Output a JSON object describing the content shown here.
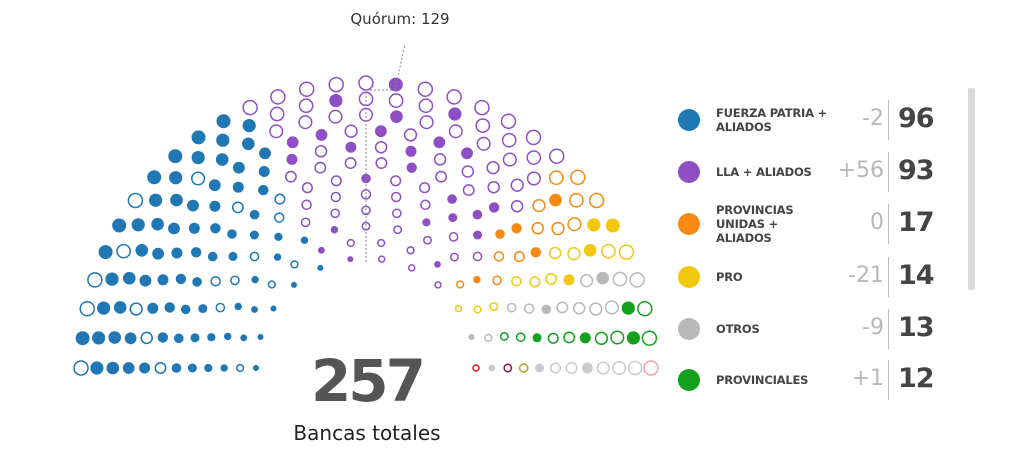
{
  "quorum_label": "Quórum: 129",
  "total": {
    "value": "257",
    "label": "Bancas totales"
  },
  "chart_data": {
    "type": "hemicycle",
    "total_seats": 257,
    "quorum": 129,
    "parties": [
      {
        "name": "FUERZA PATRIA + ALIADOS",
        "seats": 96,
        "change": "-2",
        "color": "#1f77b4"
      },
      {
        "name": "LLA + ALIADOS",
        "seats": 93,
        "change": "+56",
        "color": "#8e4fc4"
      },
      {
        "name": "PROVINCIAS UNIDAS + ALIADOS",
        "seats": 17,
        "change": "0",
        "color": "#f58a12"
      },
      {
        "name": "PRO",
        "seats": 14,
        "change": "-21",
        "color": "#f2c80f"
      },
      {
        "name": "OTROS",
        "seats": 13,
        "change": "-9",
        "color": "#b8b8b8"
      },
      {
        "name": "PROVINCIALES",
        "seats": 12,
        "change": "+1",
        "color": "#13a01c"
      }
    ],
    "extra_seat_colors": [
      "#e8121b",
      "#f4a3a8",
      "#8e1450",
      "#b5a21e"
    ]
  }
}
